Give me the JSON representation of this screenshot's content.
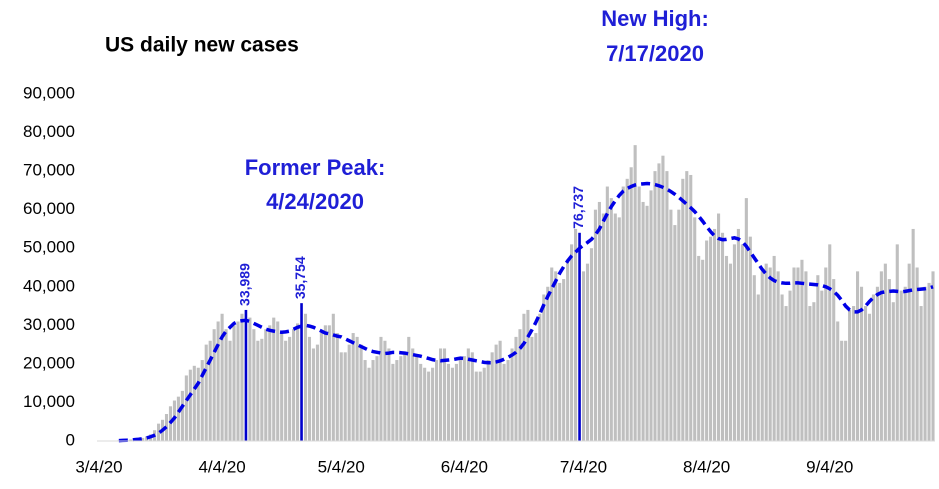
{
  "chart_data": {
    "type": "bar",
    "title": "US daily new cases",
    "annotations": [
      {
        "lines": [
          "Former Peak:",
          "4/24/2020"
        ]
      },
      {
        "lines": [
          "New High:",
          "7/17/2020"
        ]
      }
    ],
    "ylim": [
      0,
      90000
    ],
    "yticks": [
      0,
      {
        "value": 10000,
        "label": "10,000"
      },
      {
        "value": 20000,
        "label": "20,000"
      },
      {
        "value": 30000,
        "label": "30,000"
      },
      {
        "value": 40000,
        "label": "40,000"
      },
      {
        "value": 50000,
        "label": "50,000"
      },
      {
        "value": 60000,
        "label": "60,000"
      },
      {
        "value": 70000,
        "label": "70,000"
      },
      {
        "value": 80000,
        "label": "80,000"
      },
      {
        "value": 90000,
        "label": "90,000"
      }
    ],
    "categories": [
      "3/4/20",
      null,
      null,
      null,
      null,
      null,
      null,
      null,
      null,
      null,
      null,
      null,
      null,
      null,
      null,
      null,
      null,
      null,
      null,
      null,
      null,
      null,
      null,
      null,
      null,
      null,
      null,
      null,
      null,
      null,
      null,
      "4/4/20",
      null,
      null,
      null,
      null,
      null,
      null,
      null,
      null,
      null,
      null,
      null,
      null,
      null,
      null,
      null,
      null,
      null,
      null,
      null,
      null,
      null,
      null,
      null,
      null,
      null,
      null,
      null,
      null,
      null,
      "5/4/20",
      null,
      null,
      null,
      null,
      null,
      null,
      null,
      null,
      null,
      null,
      null,
      null,
      null,
      null,
      null,
      null,
      null,
      null,
      null,
      null,
      null,
      null,
      null,
      null,
      null,
      null,
      null,
      null,
      null,
      null,
      "6/4/20",
      null,
      null,
      null,
      null,
      null,
      null,
      null,
      null,
      null,
      null,
      null,
      null,
      null,
      null,
      null,
      null,
      null,
      null,
      null,
      null,
      null,
      null,
      null,
      null,
      null,
      null,
      null,
      null,
      null,
      "7/4/20",
      null,
      null,
      null,
      null,
      null,
      null,
      null,
      null,
      null,
      null,
      null,
      null,
      null,
      null,
      null,
      null,
      null,
      null,
      null,
      null,
      null,
      null,
      null,
      null,
      null,
      null,
      null,
      null,
      null,
      null,
      "8/4/20",
      null,
      null,
      null,
      null,
      null,
      null,
      null,
      null,
      null,
      null,
      null,
      null,
      null,
      null,
      null,
      null,
      null,
      null,
      null,
      null,
      null,
      null,
      null,
      null,
      null,
      null,
      null,
      null,
      null,
      null,
      "9/4/20",
      null,
      null,
      null,
      null,
      null,
      null,
      null,
      null,
      null,
      null,
      null,
      null,
      null,
      null,
      null,
      null,
      null,
      null,
      null,
      null,
      null,
      null,
      null,
      null,
      null,
      null
    ],
    "series": [
      {
        "type": "bar",
        "color": "#bfbfbf",
        "highlight_color": "#0000cc",
        "values": [
          30,
          60,
          70,
          100,
          120,
          180,
          250,
          300,
          400,
          500,
          600,
          800,
          1200,
          1700,
          2800,
          4500,
          5500,
          7000,
          9000,
          10500,
          11500,
          13000,
          17000,
          18500,
          19500,
          19000,
          21000,
          25000,
          26000,
          29000,
          31000,
          33000,
          29000,
          26000,
          30000,
          31000,
          33000,
          33989,
          32000,
          29000,
          26000,
          26500,
          29000,
          30000,
          32000,
          31000,
          28000,
          26000,
          27000,
          29000,
          30500,
          35754,
          33000,
          27000,
          24000,
          25000,
          28000,
          30000,
          30000,
          33000,
          28000,
          23000,
          23000,
          25000,
          28000,
          27000,
          25000,
          21000,
          19000,
          21000,
          22000,
          27000,
          26000,
          24000,
          20000,
          21000,
          22000,
          23000,
          27000,
          24000,
          22000,
          20000,
          19000,
          18000,
          19000,
          21000,
          24000,
          24000,
          20000,
          19000,
          20000,
          21000,
          22000,
          24000,
          23000,
          18000,
          18000,
          19000,
          21000,
          23000,
          25000,
          26000,
          20000,
          21000,
          24000,
          27000,
          29000,
          33000,
          34000,
          27000,
          28000,
          33000,
          38000,
          40000,
          45000,
          44000,
          41000,
          42000,
          47000,
          51000,
          55000,
          54000,
          44000,
          46000,
          50000,
          60000,
          62000,
          59000,
          66000,
          63000,
          59000,
          58000,
          66000,
          68000,
          71000,
          76737,
          66000,
          62000,
          61000,
          65000,
          70000,
          72000,
          74000,
          70000,
          60000,
          56000,
          60000,
          68000,
          70000,
          69000,
          58000,
          48000,
          47000,
          52000,
          53000,
          55000,
          59000,
          54000,
          48000,
          46000,
          51000,
          55000,
          51000,
          63000,
          53000,
          43000,
          38000,
          44000,
          46000,
          45000,
          48000,
          44000,
          38000,
          35000,
          39000,
          45000,
          45000,
          47000,
          44000,
          35000,
          36000,
          43000,
          39000,
          45000,
          51000,
          42000,
          31000,
          26000,
          26000,
          34000,
          35000,
          44000,
          40000,
          35000,
          33000,
          38000,
          40000,
          44000,
          46000,
          42000,
          36000,
          51000,
          39000,
          40000,
          46000,
          55000,
          45000,
          35000,
          40000,
          41000,
          44000
        ],
        "value_labels": [
          null,
          null,
          null,
          null,
          null,
          null,
          null,
          null,
          null,
          null,
          null,
          null,
          null,
          null,
          null,
          null,
          null,
          null,
          null,
          null,
          null,
          null,
          null,
          null,
          null,
          null,
          null,
          null,
          null,
          null,
          null,
          null,
          null,
          null,
          null,
          null,
          null,
          "33,989",
          null,
          null,
          null,
          null,
          null,
          null,
          null,
          null,
          null,
          null,
          null,
          null,
          null,
          "35,754",
          null,
          null,
          null,
          null,
          null,
          null,
          null,
          null,
          null,
          null,
          null,
          null,
          null,
          null,
          null,
          null,
          null,
          null,
          null,
          null,
          null,
          null,
          null,
          null,
          null,
          null,
          null,
          null,
          null,
          null,
          null,
          null,
          null,
          null,
          null,
          null,
          null,
          null,
          null,
          null,
          null,
          null,
          null,
          null,
          null,
          null,
          null,
          null,
          null,
          null,
          null,
          null,
          null,
          null,
          null,
          null,
          null,
          null,
          null,
          null,
          null,
          null,
          null,
          null,
          null,
          null,
          null,
          null,
          null,
          "76,737",
          null,
          null,
          null,
          null,
          null,
          null,
          null,
          null,
          null,
          null,
          null,
          null,
          null,
          null,
          null,
          null,
          null,
          null,
          null,
          null,
          null,
          null,
          null,
          null,
          null,
          null,
          null,
          null,
          null,
          null,
          null,
          null,
          null,
          null,
          null,
          null,
          null,
          null,
          null,
          null,
          null,
          null,
          null,
          null,
          null,
          null,
          null,
          null,
          null,
          null,
          null,
          null,
          null,
          null,
          null,
          null,
          null,
          null,
          null,
          null,
          null,
          null,
          null,
          null,
          null,
          null,
          null,
          null,
          null,
          null,
          null,
          null,
          null,
          null,
          null
        ]
      },
      {
        "type": "line",
        "color": "#0000e6",
        "dashed": true,
        "values": [
          null,
          null,
          null,
          null,
          null,
          100,
          150,
          200,
          250,
          350,
          450,
          600,
          800,
          1100,
          1500,
          2000,
          2800,
          3700,
          4800,
          6000,
          7500,
          9000,
          10500,
          12000,
          13500,
          15000,
          17000,
          19000,
          21000,
          23000,
          25000,
          27000,
          28500,
          29500,
          30500,
          31000,
          31200,
          31300,
          31000,
          30500,
          30000,
          29500,
          29000,
          28700,
          28500,
          28300,
          28200,
          28300,
          28500,
          29000,
          29500,
          29800,
          30000,
          29800,
          29500,
          29000,
          28500,
          28000,
          27800,
          27500,
          27200,
          27000,
          26500,
          26000,
          25500,
          25000,
          24500,
          24000,
          23500,
          23200,
          23000,
          22800,
          22700,
          22800,
          23000,
          23000,
          22900,
          22800,
          22600,
          22400,
          22200,
          22000,
          21700,
          21400,
          21100,
          20900,
          20800,
          20900,
          21000,
          21100,
          21300,
          21500,
          21400,
          21200,
          21000,
          20800,
          20600,
          20400,
          20300,
          20300,
          20500,
          20800,
          21200,
          21700,
          22300,
          23000,
          24000,
          25300,
          27000,
          28800,
          30800,
          33000,
          35300,
          37500,
          39500,
          41500,
          43500,
          45200,
          46700,
          48000,
          49000,
          50000,
          50800,
          51500,
          52300,
          53500,
          55000,
          57000,
          59000,
          60800,
          62300,
          63700,
          64800,
          65500,
          66000,
          66400,
          66600,
          66700,
          66800,
          66700,
          66500,
          66200,
          65800,
          65300,
          64700,
          64000,
          63200,
          62300,
          61400,
          60500,
          59500,
          58300,
          57000,
          55600,
          54300,
          53200,
          52500,
          52200,
          52300,
          52500,
          52700,
          52400,
          51700,
          50500,
          49000,
          47500,
          46000,
          44500,
          43300,
          42300,
          41600,
          41200,
          41000,
          40900,
          40900,
          41000,
          41000,
          40900,
          40800,
          40700,
          40600,
          40500,
          40300,
          40000,
          39500,
          38800,
          37800,
          36500,
          35000,
          34000,
          33500,
          33500,
          34000,
          35000,
          36200,
          37200,
          38000,
          38500,
          38700,
          38800,
          38900,
          38800,
          38700,
          38800,
          39000,
          39200,
          39300,
          39400,
          39500,
          39700,
          40000
        ]
      }
    ]
  }
}
